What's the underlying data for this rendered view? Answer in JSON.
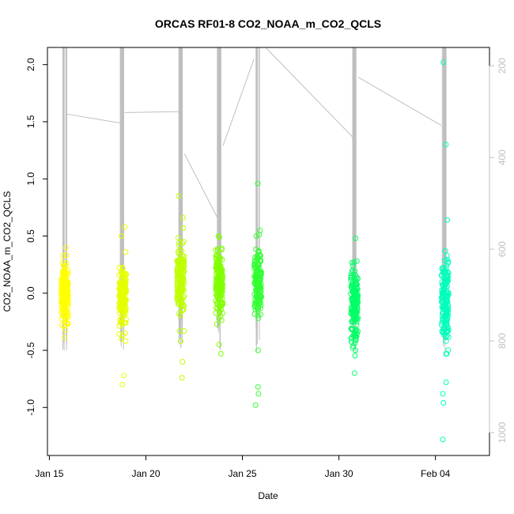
{
  "chart_data": {
    "type": "scatter",
    "title": "ORCAS RF01-8 CO2_NOAA_m_CO2_QCLS",
    "xlabel": "Date",
    "ylabel": "CO2_NOAA_m_CO2_QCLS",
    "x_ticks": [
      "Jan 15",
      "Jan 20",
      "Jan 25",
      "Jan 30",
      "Feb 04"
    ],
    "x_tick_days": [
      15,
      20,
      25,
      30,
      35
    ],
    "xlim": [
      14.9,
      37.8
    ],
    "y_ticks": [
      "-1.0",
      "-0.5",
      "0.0",
      "0.5",
      "1.0",
      "1.5",
      "2.0"
    ],
    "y_tick_values": [
      -1.0,
      -0.5,
      0.0,
      0.5,
      1.0,
      1.5,
      2.0
    ],
    "ylim": [
      -1.42,
      2.15
    ],
    "right_axis": {
      "ticks": [
        "200",
        "400",
        "600",
        "800",
        "1000"
      ],
      "values": [
        200,
        400,
        600,
        800,
        1000
      ],
      "lim": [
        1050,
        160
      ],
      "color": "#bfbfbf"
    },
    "grid": false,
    "flights": [
      {
        "day": 15.8,
        "color": "#ffff00",
        "center": 0.0,
        "spread": 0.14,
        "outliers": [
          0.4,
          -0.32,
          -0.22
        ]
      },
      {
        "day": 18.8,
        "color": "#e6ff00",
        "center": -0.02,
        "spread": 0.14,
        "outliers": [
          0.58,
          0.5,
          -0.72,
          -0.8,
          -0.4
        ]
      },
      {
        "day": 21.8,
        "color": "#bfff00",
        "center": 0.12,
        "spread": 0.15,
        "outliers": [
          0.85,
          0.66,
          -0.6,
          -0.74,
          -0.42
        ]
      },
      {
        "day": 23.8,
        "color": "#80ff00",
        "center": 0.1,
        "spread": 0.15,
        "outliers": [
          0.5,
          -0.53,
          -0.45
        ]
      },
      {
        "day": 25.8,
        "color": "#33ff33",
        "center": 0.1,
        "spread": 0.14,
        "outliers": [
          0.96,
          -0.82,
          -0.88,
          -0.98,
          -0.5
        ]
      },
      {
        "day": 30.8,
        "color": "#00ff66",
        "center": -0.12,
        "spread": 0.16,
        "outliers": [
          0.48,
          -0.7,
          -0.5
        ]
      },
      {
        "day": 35.5,
        "color": "#00ffbb",
        "center": -0.08,
        "spread": 0.18,
        "outliers": [
          2.02,
          1.3,
          0.64,
          -1.28,
          -0.96,
          -0.88,
          -0.78
        ]
      }
    ],
    "altitude_trace": {
      "color": "#bfbfbf",
      "transit_points": [
        [
          15.85,
          305
        ],
        [
          18.7,
          325
        ],
        [
          18.9,
          302
        ],
        [
          21.75,
          300
        ],
        [
          22.0,
          392
        ],
        [
          23.75,
          535
        ],
        [
          24.0,
          374
        ],
        [
          25.6,
          185
        ],
        [
          26.2,
          100
        ],
        [
          30.7,
          355
        ],
        [
          31.0,
          225
        ],
        [
          35.3,
          330
        ]
      ],
      "profiles": [
        {
          "day": 15.8,
          "top": 100,
          "bottom": 825
        },
        {
          "day": 18.75,
          "top": 100,
          "bottom": 825
        },
        {
          "day": 21.8,
          "top": 100,
          "bottom": 825
        },
        {
          "day": 23.8,
          "top": 100,
          "bottom": 825
        },
        {
          "day": 25.8,
          "top": 100,
          "bottom": 825
        },
        {
          "day": 30.8,
          "top": 100,
          "bottom": 825
        },
        {
          "day": 35.45,
          "top": 100,
          "bottom": 825
        }
      ]
    }
  }
}
